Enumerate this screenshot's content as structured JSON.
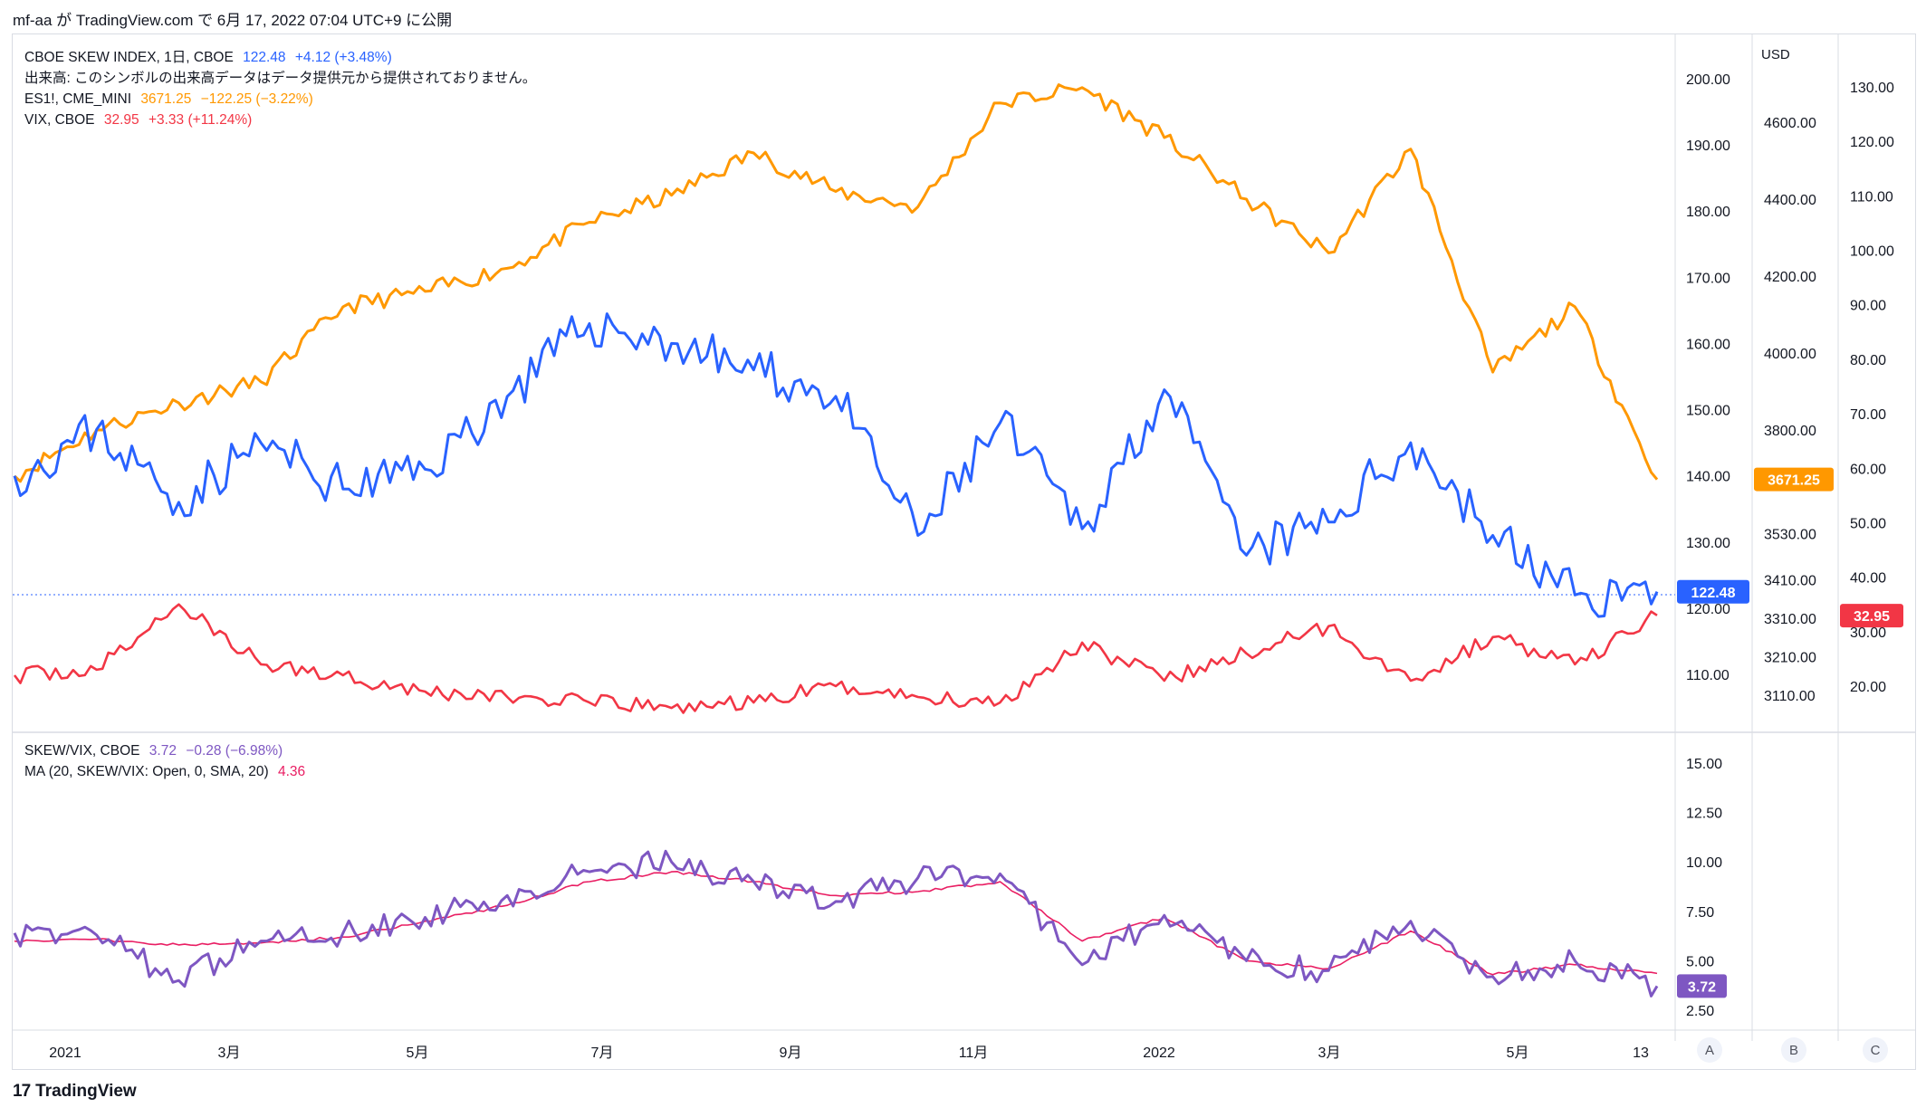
{
  "header": {
    "text": "mf-aa が TradingView.com で 6月 17, 2022 07:04 UTC+9 に公開"
  },
  "footer": {
    "brand": "TradingView",
    "logo": "17"
  },
  "pane_buttons": [
    "A",
    "B",
    "C"
  ],
  "legend_top": [
    {
      "name": "CBOE SKEW INDEX, 1日, CBOE",
      "value": "122.48",
      "change": "+4.12 (+3.48%)",
      "color": "#2962ff"
    },
    {
      "name": "出来高: このシンボルの出来高データはデータ提供元から提供されておりません。",
      "value": "",
      "change": "",
      "color": "#131722"
    },
    {
      "name": "ES1!, CME_MINI",
      "value": "3671.25",
      "change": "−122.25 (−3.22%)",
      "color": "#ff9800"
    },
    {
      "name": "VIX, CBOE",
      "value": "32.95",
      "change": "+3.33 (+11.24%)",
      "color": "#f23645"
    }
  ],
  "legend_bottom": [
    {
      "name": "SKEW/VIX, CBOE",
      "value": "3.72",
      "change": "−0.28 (−6.98%)",
      "color": "#7e57c2"
    },
    {
      "name": "MA (20, SKEW/VIX: Open, 0, SMA, 20)",
      "value": "4.36",
      "change": "",
      "color": "#e91e63"
    }
  ],
  "axes": {
    "usd_label": "USD",
    "skew_ticks": [
      "200.00",
      "190.00",
      "180.00",
      "170.00",
      "160.00",
      "150.00",
      "140.00",
      "130.00",
      "120.00",
      "110.00"
    ],
    "es_ticks": [
      "4600.00",
      "4400.00",
      "4200.00",
      "4000.00",
      "3800.00",
      "3671.25",
      "3530.00",
      "3410.00",
      "3310.00",
      "3210.00",
      "3110.00"
    ],
    "vix_ticks": [
      "130.00",
      "120.00",
      "110.00",
      "100.00",
      "90.00",
      "80.00",
      "70.00",
      "60.00",
      "50.00",
      "40.00",
      "30.00",
      "20.00"
    ],
    "ratio_ticks": [
      "15.00",
      "12.50",
      "10.00",
      "7.50",
      "5.00",
      "2.50"
    ],
    "x_labels": [
      "2021",
      "3月",
      "5月",
      "7月",
      "9月",
      "11月",
      "2022",
      "3月",
      "5月",
      "13"
    ]
  },
  "price_tags": {
    "skew": "122.48",
    "es": "3671.25",
    "vix": "32.95",
    "ratio": "3.72"
  },
  "colors": {
    "skew": "#2962ff",
    "es": "#ff9800",
    "vix": "#f23645",
    "ratio": "#7e57c2",
    "ma": "#e91e63"
  },
  "chart_data": {
    "type": "line",
    "x": [
      "2020-12-21",
      "2021-01-18",
      "2021-02-16",
      "2021-03-15",
      "2021-04-12",
      "2021-05-10",
      "2021-06-07",
      "2021-07-06",
      "2021-08-02",
      "2021-08-30",
      "2021-09-27",
      "2021-10-25",
      "2021-11-22",
      "2021-12-20",
      "2022-01-18",
      "2022-02-14",
      "2022-03-14",
      "2022-04-11",
      "2022-05-09",
      "2022-06-06",
      "2022-06-16"
    ],
    "series": [
      {
        "name": "CBOE SKEW INDEX",
        "values": [
          140,
          147,
          136,
          145,
          138,
          141,
          152,
          163,
          160,
          156,
          152,
          131,
          148,
          132,
          153,
          128,
          133,
          145,
          131,
          122,
          122.5
        ]
      },
      {
        "name": "ES1!",
        "values": [
          3680,
          3800,
          3870,
          3925,
          4120,
          4160,
          4220,
          4340,
          4410,
          4520,
          4420,
          4380,
          4650,
          4690,
          4560,
          4400,
          4260,
          4530,
          3950,
          4120,
          3671
        ]
      },
      {
        "name": "VIX",
        "values": [
          22,
          23,
          35,
          24,
          22,
          19,
          18,
          17,
          16,
          17,
          20,
          18,
          17,
          28,
          21,
          26,
          31,
          21,
          29,
          24,
          33
        ]
      },
      {
        "name": "SKEW/VIX",
        "values": [
          6.4,
          6.3,
          4,
          6,
          6.4,
          7.2,
          8.3,
          9.5,
          10,
          9,
          8,
          9.2,
          9.4,
          4.8,
          7.3,
          5,
          4.5,
          7,
          4.2,
          5,
          3.72
        ]
      },
      {
        "name": "MA (20, SKEW/VIX: Open, 0, SMA, 20)",
        "values": [
          6.0,
          6.1,
          5.8,
          5.9,
          6.2,
          7.0,
          7.8,
          9.0,
          9.5,
          9.0,
          8.3,
          8.5,
          9.0,
          6.0,
          7.2,
          5.0,
          4.6,
          6.5,
          4.3,
          4.8,
          4.36
        ]
      }
    ],
    "ylim_skew": [
      105,
      205
    ],
    "ylim_ratio": [
      1.5,
      16.5
    ],
    "grid": false
  }
}
